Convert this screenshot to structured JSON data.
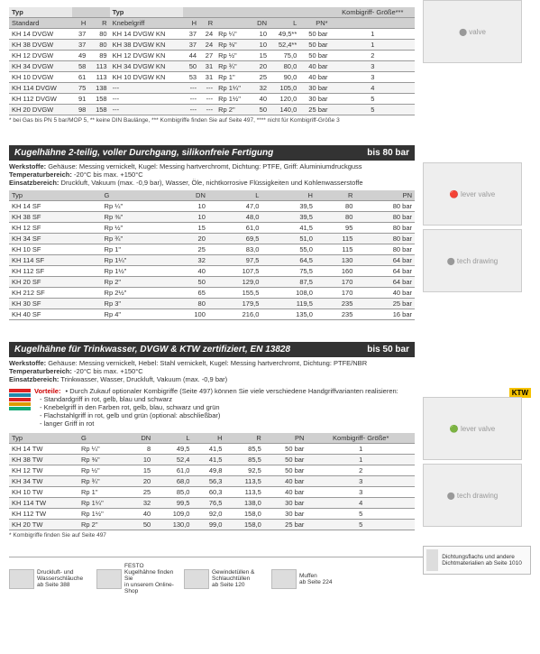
{
  "table1": {
    "head_left": "Typ",
    "head_sub_left": "Standard",
    "head_mid": "Typ",
    "head_sub_mid": "Knebelgriff",
    "cols_right_label": "Kombigriff-\nGröße***",
    "cols": [
      "H",
      "R",
      "",
      "H",
      "R",
      "",
      "DN",
      "L",
      "PN*",
      ""
    ],
    "rows": [
      [
        "KH 14 DVGW",
        "37",
        "80",
        "KH 14 DVGW KN",
        "37",
        "24",
        "Rp ¼\"",
        "10",
        "49,5**",
        "50 bar",
        "1"
      ],
      [
        "KH 38 DVGW",
        "37",
        "80",
        "KH 38 DVGW KN",
        "37",
        "24",
        "Rp ⅜\"",
        "10",
        "52,4**",
        "50 bar",
        "1"
      ],
      [
        "KH 12 DVGW",
        "49",
        "89",
        "KH 12 DVGW KN",
        "44",
        "27",
        "Rp ½\"",
        "15",
        "75,0",
        "50 bar",
        "2"
      ],
      [
        "KH 34 DVGW",
        "58",
        "113",
        "KH 34 DVGW KN",
        "50",
        "31",
        "Rp ¾\"",
        "20",
        "80,0",
        "40 bar",
        "3"
      ],
      [
        "KH 10 DVGW",
        "61",
        "113",
        "KH 10 DVGW KN",
        "53",
        "31",
        "Rp 1\"",
        "25",
        "90,0",
        "40 bar",
        "3"
      ],
      [
        "KH 114 DVGW",
        "75",
        "138",
        "---",
        "---",
        "---",
        "Rp 1¼\"",
        "32",
        "105,0",
        "30 bar",
        "4"
      ],
      [
        "KH 112 DVGW",
        "91",
        "158",
        "---",
        "---",
        "---",
        "Rp 1½\"",
        "40",
        "120,0",
        "30 bar",
        "5"
      ],
      [
        "KH 20 DVGW",
        "98",
        "158",
        "---",
        "---",
        "---",
        "Rp 2\"",
        "50",
        "140,0",
        "25 bar",
        "5"
      ]
    ],
    "footnote": "* bei Gas bis PN 5 bar/MOP 5, ** keine DIN Baulänge, *** Kombigriffe finden Sie auf Seite 497, **** nicht für Kombigriff-Größe 3"
  },
  "section2": {
    "title": "Kugelhähne 2-teilig, voller Durchgang, silikonfreie Fertigung",
    "right": "bis 80 bar",
    "spec1": "Werkstoffe:",
    "spec1_txt": " Gehäuse: Messing vernickelt, Kugel: Messing hartverchromt, Dichtung: PTFE, Griff: Aluminiumdruckguss",
    "spec2": "Temperaturbereich:",
    "spec2_txt": " -20°C bis max. +150°C",
    "spec3": "Einsatzbereich:",
    "spec3_txt": " Druckluft, Vakuum (max. -0,9 bar), Wasser, Öle, nichtkorrosive Flüssigkeiten und Kohlenwasserstoffe"
  },
  "table2": {
    "cols": [
      "Typ",
      "G",
      "DN",
      "L",
      "H",
      "R",
      "PN"
    ],
    "rows": [
      [
        "KH 14 SF",
        "Rp ¼\"",
        "10",
        "47,0",
        "39,5",
        "80",
        "80 bar"
      ],
      [
        "KH 38 SF",
        "Rp ⅜\"",
        "10",
        "48,0",
        "39,5",
        "80",
        "80 bar"
      ],
      [
        "KH 12 SF",
        "Rp ½\"",
        "15",
        "61,0",
        "41,5",
        "95",
        "80 bar"
      ],
      [
        "KH 34 SF",
        "Rp ¾\"",
        "20",
        "69,5",
        "51,0",
        "115",
        "80 bar"
      ],
      [
        "KH 10 SF",
        "Rp 1\"",
        "25",
        "83,0",
        "55,0",
        "115",
        "80 bar"
      ],
      [
        "KH 114 SF",
        "Rp 1¼\"",
        "32",
        "97,5",
        "64,5",
        "130",
        "64 bar"
      ],
      [
        "KH 112 SF",
        "Rp 1½\"",
        "40",
        "107,5",
        "75,5",
        "160",
        "64 bar"
      ],
      [
        "KH 20 SF",
        "Rp 2\"",
        "50",
        "129,0",
        "87,5",
        "170",
        "64 bar"
      ],
      [
        "KH 212 SF",
        "Rp 2½\"",
        "65",
        "155,5",
        "108,0",
        "170",
        "40 bar"
      ],
      [
        "KH 30 SF",
        "Rp 3\"",
        "80",
        "179,5",
        "119,5",
        "235",
        "25 bar"
      ],
      [
        "KH 40 SF",
        "Rp 4\"",
        "100",
        "216,0",
        "135,0",
        "235",
        "16 bar"
      ]
    ]
  },
  "section3": {
    "title": "Kugelhähne für Trinkwasser, DVGW & KTW zertifiziert, EN 13828",
    "right": "bis 50 bar",
    "spec1": "Werkstoffe:",
    "spec1_txt": " Gehäuse: Messing vernickelt, Hebel: Stahl vernickelt, Kugel: Messing hartverchromt, Dichtung: PTFE/NBR",
    "spec2": "Temperaturbereich:",
    "spec2_txt": " -20°C bis max. +150°C",
    "spec3": "Einsatzbereich:",
    "spec3_txt": " Trinkwasser, Wasser, Druckluft, Vakuum (max. -0,9 bar)",
    "vorteile_label": "Vorteile:",
    "vorteile_intro": "• Durch Zukauf optionaler Kombigriffe (Seite 497) können Sie viele verschiedene Handgriffvarianten realisieren:",
    "vorteile": [
      "Standardgriff in rot, gelb, blau und schwarz",
      "Knebelgriff in den Farben rot, gelb, blau, schwarz und grün",
      "Flachstahlgriff in rot, gelb und grün (optional: abschließbar)",
      "langer Griff in rot"
    ],
    "swatch_colors": [
      "#d22",
      "#28a",
      "#d22",
      "#d90",
      "#1a7"
    ]
  },
  "table3": {
    "cols": [
      "Typ",
      "G",
      "DN",
      "L",
      "H",
      "R",
      "PN",
      "Kombigriff-\nGröße*"
    ],
    "rows": [
      [
        "KH 14 TW",
        "Rp ¼\"",
        "8",
        "49,5",
        "41,5",
        "85,5",
        "50 bar",
        "1"
      ],
      [
        "KH 38 TW",
        "Rp ⅜\"",
        "10",
        "52,4",
        "41,5",
        "85,5",
        "50 bar",
        "1"
      ],
      [
        "KH 12 TW",
        "Rp ½\"",
        "15",
        "61,0",
        "49,8",
        "92,5",
        "50 bar",
        "2"
      ],
      [
        "KH 34 TW",
        "Rp ¾\"",
        "20",
        "68,0",
        "56,3",
        "113,5",
        "40 bar",
        "3"
      ],
      [
        "KH 10 TW",
        "Rp 1\"",
        "25",
        "85,0",
        "60,3",
        "113,5",
        "40 bar",
        "3"
      ],
      [
        "KH 114 TW",
        "Rp 1¼\"",
        "32",
        "99,5",
        "76,5",
        "138,0",
        "30 bar",
        "4"
      ],
      [
        "KH 112 TW",
        "Rp 1½\"",
        "40",
        "109,0",
        "92,0",
        "158,0",
        "30 bar",
        "5"
      ],
      [
        "KH 20 TW",
        "Rp 2\"",
        "50",
        "130,0",
        "99,0",
        "158,0",
        "25 bar",
        "5"
      ]
    ],
    "footnote": "* Kombigriffe finden Sie auf Seite 497"
  },
  "ktw_badge": "KTW",
  "sidebox": {
    "text": "Dichtungsflachs und andere Dichtmaterialien ab Seite 1010"
  },
  "refs": [
    {
      "t1": "Druckluft- und",
      "t2": "Wasserschläuche",
      "t3": "ab Seite 388"
    },
    {
      "t1": "FESTO",
      "t2": "Kugelhähne finden Sie",
      "t3": "in unserem Online-Shop"
    },
    {
      "t1": "Gewindetüllen &",
      "t2": "Schlauchtüllen",
      "t3": "ab Seite 120"
    },
    {
      "t1": "Muffen",
      "t2": "ab Seite 224",
      "t3": ""
    }
  ],
  "colors": {
    "header_bg": "#333333",
    "th_bg": "#d0d0d0",
    "alt_row": "#f4f4f4",
    "ktw": "#f6c200",
    "vorteile": "#cc0000"
  }
}
